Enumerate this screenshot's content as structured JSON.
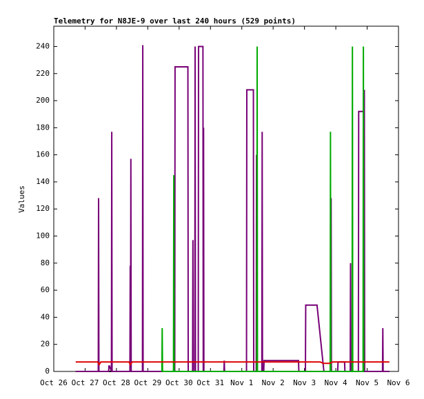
{
  "chart_data": {
    "type": "line",
    "title": "Telemetry for N8JE-9 over last 240 hours (529 points)",
    "y_label": "Values",
    "xlim": [
      0,
      11
    ],
    "xticks": [
      {
        "value": 0,
        "label": "Oct 26"
      },
      {
        "value": 1,
        "label": "Oct 27"
      },
      {
        "value": 2,
        "label": "Oct 28"
      },
      {
        "value": 3,
        "label": "Oct 29"
      },
      {
        "value": 4,
        "label": "Oct 30"
      },
      {
        "value": 5,
        "label": "Oct 31"
      },
      {
        "value": 6,
        "label": "Nov 1"
      },
      {
        "value": 7,
        "label": "Nov 2"
      },
      {
        "value": 8,
        "label": "Nov 3"
      },
      {
        "value": 9,
        "label": "Nov 4"
      },
      {
        "value": 10,
        "label": "Nov 5"
      },
      {
        "value": 11,
        "label": "Nov 6"
      }
    ],
    "ylim": [
      0,
      255
    ],
    "yticks": [
      0,
      20,
      40,
      60,
      80,
      100,
      120,
      140,
      160,
      180,
      200,
      220,
      240
    ],
    "grid": false,
    "series": [
      {
        "color": "#000000",
        "x": [
          0.7,
          10.71
        ],
        "values": [
          0,
          0
        ]
      },
      {
        "color": "#770077",
        "x": [
          0.7,
          1.42,
          1.43,
          1.44,
          1.75,
          1.76,
          1.78,
          1.84,
          1.85,
          1.86,
          2.43,
          2.44,
          2.45,
          2.46,
          2.47,
          2.83,
          2.84,
          2.85,
          3.86,
          3.87,
          4.28,
          4.29,
          4.43,
          4.44,
          4.45,
          4.5,
          4.51,
          4.52,
          4.61,
          4.62,
          4.76,
          4.77,
          4.78,
          4.79,
          5.43,
          5.44,
          5.45,
          6.15,
          6.16,
          6.37,
          6.38,
          6.46,
          6.47,
          6.48,
          6.64,
          6.65,
          6.66,
          6.7,
          6.71,
          7.81,
          7.82,
          8.03,
          8.04,
          8.4,
          8.62,
          8.84,
          8.85,
          8.86,
          9.06,
          9.07,
          9.28,
          9.29,
          9.46,
          9.47,
          9.48,
          9.72,
          9.73,
          9.89,
          9.9,
          9.91,
          9.92,
          10.49,
          10.5,
          10.51,
          10.71
        ],
        "values": [
          0,
          0,
          128,
          0,
          0,
          4,
          4,
          0,
          177,
          0,
          0,
          78,
          0,
          157,
          0,
          0,
          241,
          0,
          0,
          225,
          225,
          0,
          0,
          97,
          0,
          0,
          240,
          0,
          0,
          240,
          240,
          0,
          180,
          0,
          0,
          8,
          0,
          0,
          208,
          208,
          0,
          0,
          160,
          0,
          0,
          177,
          0,
          0,
          8,
          8,
          0,
          0,
          49,
          49,
          0,
          0,
          128,
          0,
          0,
          7,
          7,
          0,
          0,
          80,
          0,
          0,
          192,
          192,
          0,
          208,
          0,
          0,
          32,
          0,
          0
        ]
      },
      {
        "color": "#00aa00",
        "x": [
          3.45,
          3.46,
          3.47,
          3.82,
          3.83,
          3.84,
          6.48,
          6.49,
          6.5,
          8.82,
          8.83,
          8.84,
          9.52,
          9.53,
          9.54,
          9.87,
          9.88,
          9.89
        ],
        "values": [
          0,
          32,
          0,
          0,
          145,
          0,
          0,
          240,
          0,
          0,
          177,
          0,
          0,
          240,
          0,
          0,
          240,
          0
        ]
      },
      {
        "color": "#dd0000",
        "x": [
          0.7,
          1.4,
          1.45,
          1.5,
          2.4,
          2.44,
          2.5,
          8.5,
          8.6,
          8.8,
          8.9,
          10.71
        ],
        "values": [
          7,
          7,
          5,
          7,
          7,
          5,
          7,
          7,
          6,
          6,
          7,
          7
        ]
      }
    ]
  }
}
